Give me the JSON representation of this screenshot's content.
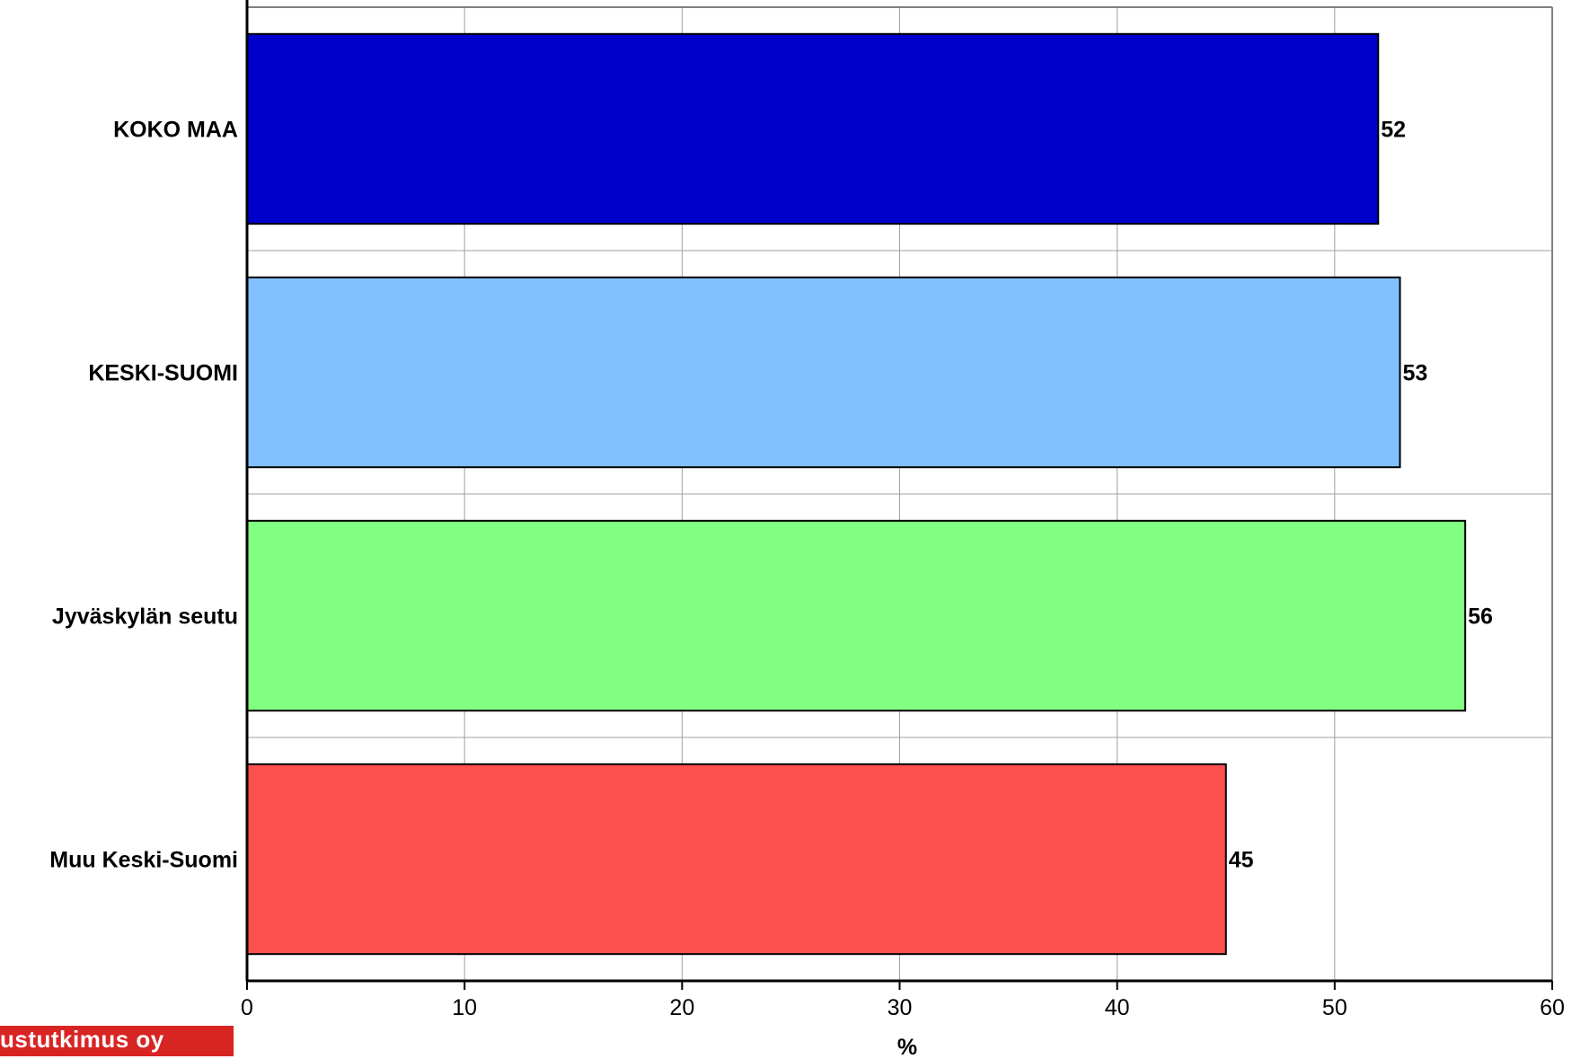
{
  "chart_data": {
    "type": "bar",
    "orientation": "horizontal",
    "categories": [
      "KOKO MAA",
      "KESKI-SUOMI",
      "Jyväskylän seutu",
      "Muu Keski-Suomi"
    ],
    "values": [
      52,
      53,
      56,
      45
    ],
    "colors": [
      "#0000cc",
      "#80c0ff",
      "#80ff80",
      "#ff5050"
    ],
    "title": "",
    "xlabel": "%",
    "ylabel": "",
    "xlim": [
      0,
      60
    ],
    "xticks": [
      0,
      10,
      20,
      30,
      40,
      50,
      60
    ],
    "grid": true
  },
  "logo": {
    "text": "ustutkimus oy",
    "color": "#d92424"
  }
}
